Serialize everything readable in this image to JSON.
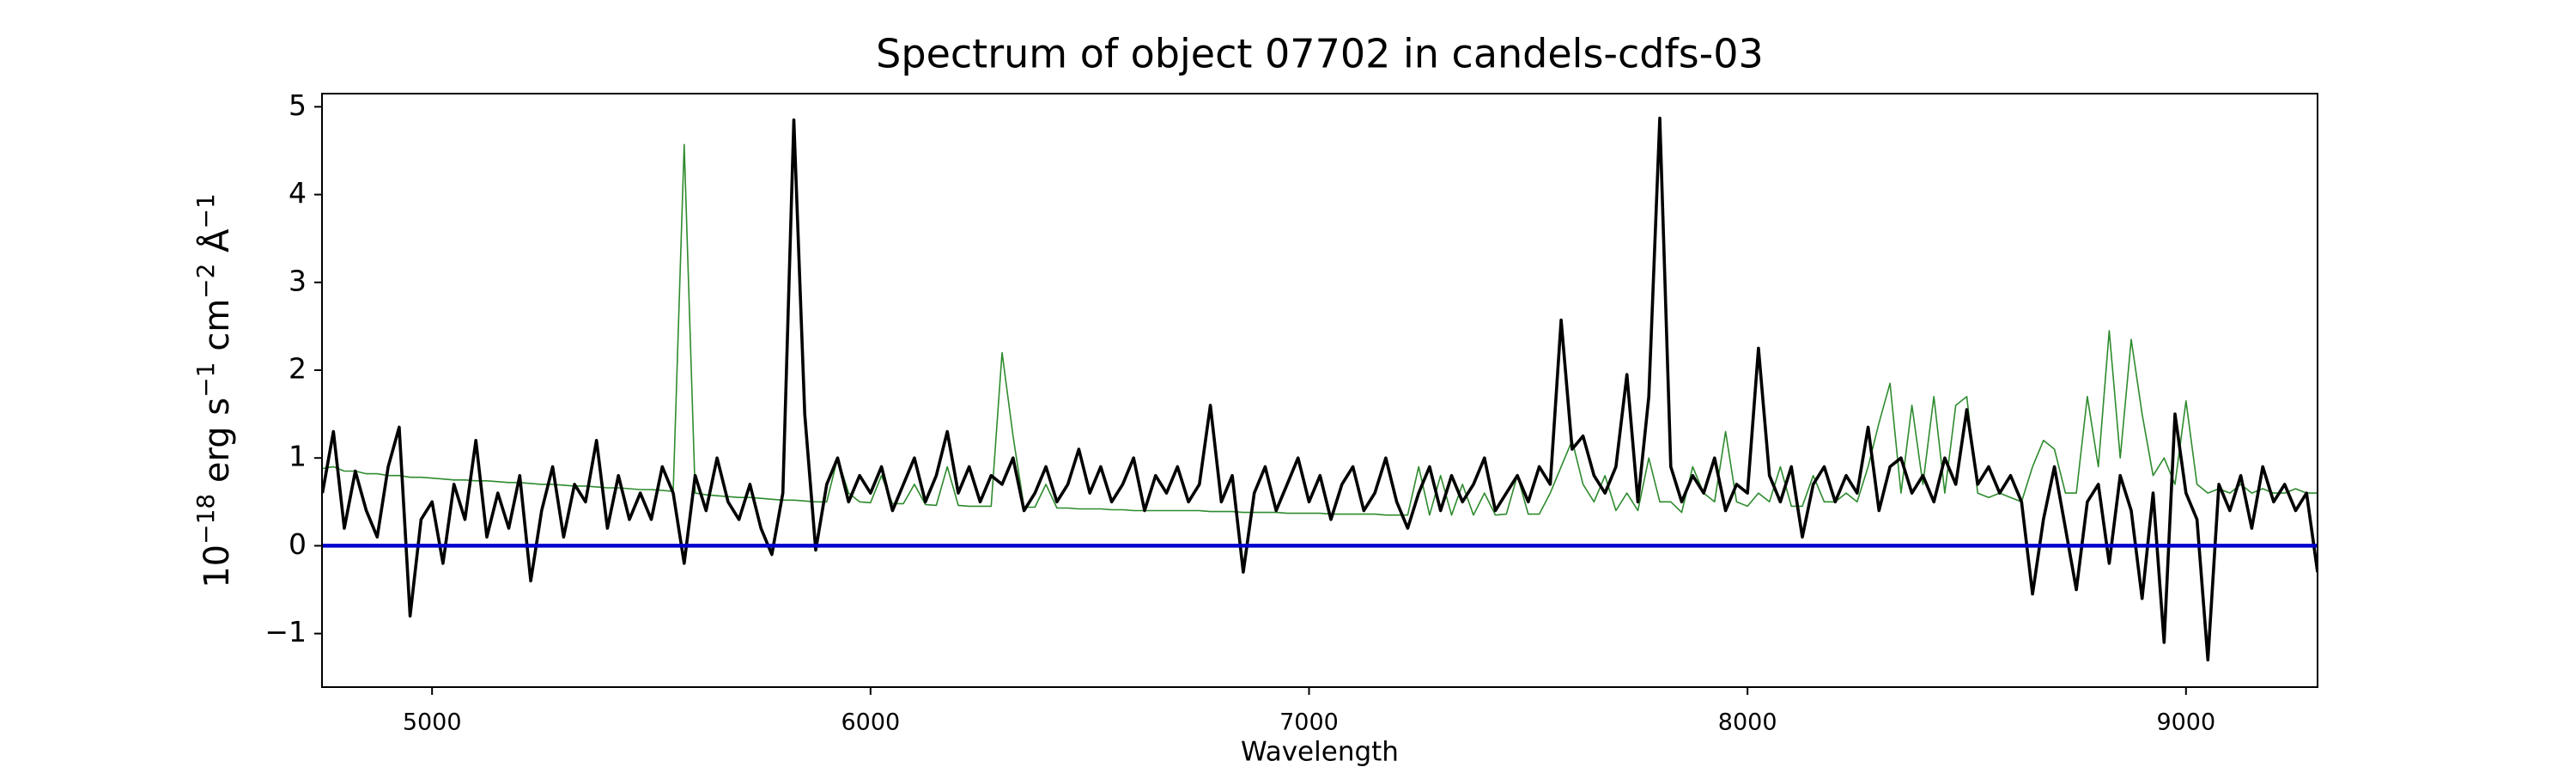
{
  "chart_data": {
    "type": "line",
    "title": "Spectrum of object 07702 in candels-cdfs-03",
    "xlabel": "Wavelength",
    "ylabel": [
      "10",
      "−18",
      " erg s",
      "−1",
      " cm",
      "−2",
      " Å",
      "−1"
    ],
    "xlim": [
      4749,
      9300
    ],
    "ylim": [
      -1.61,
      5.15
    ],
    "xticks": [
      5000,
      6000,
      7000,
      8000,
      9000
    ],
    "yticks": [
      {
        "value": -1,
        "label": "−1"
      },
      0,
      1,
      2,
      3,
      4,
      5
    ],
    "x": [
      4750,
      4775,
      4800,
      4825,
      4850,
      4875,
      4900,
      4925,
      4950,
      4975,
      5000,
      5025,
      5050,
      5075,
      5100,
      5125,
      5150,
      5175,
      5200,
      5225,
      5250,
      5275,
      5300,
      5325,
      5350,
      5375,
      5400,
      5425,
      5450,
      5475,
      5500,
      5525,
      5550,
      5575,
      5600,
      5625,
      5650,
      5675,
      5700,
      5725,
      5750,
      5775,
      5800,
      5825,
      5850,
      5875,
      5900,
      5925,
      5950,
      5975,
      6000,
      6025,
      6050,
      6075,
      6100,
      6125,
      6150,
      6175,
      6200,
      6225,
      6250,
      6275,
      6300,
      6325,
      6350,
      6375,
      6400,
      6425,
      6450,
      6475,
      6500,
      6525,
      6550,
      6575,
      6600,
      6625,
      6650,
      6675,
      6700,
      6725,
      6750,
      6775,
      6800,
      6825,
      6850,
      6875,
      6900,
      6925,
      6950,
      6975,
      7000,
      7025,
      7050,
      7075,
      7100,
      7125,
      7150,
      7175,
      7200,
      7225,
      7250,
      7275,
      7300,
      7325,
      7350,
      7375,
      7400,
      7425,
      7450,
      7475,
      7500,
      7525,
      7550,
      7575,
      7600,
      7625,
      7650,
      7675,
      7700,
      7725,
      7750,
      7775,
      7800,
      7825,
      7850,
      7875,
      7900,
      7925,
      7950,
      7975,
      8000,
      8025,
      8050,
      8075,
      8100,
      8125,
      8150,
      8175,
      8200,
      8225,
      8250,
      8275,
      8300,
      8325,
      8350,
      8375,
      8400,
      8425,
      8450,
      8475,
      8500,
      8525,
      8550,
      8575,
      8600,
      8625,
      8650,
      8675,
      8700,
      8725,
      8750,
      8775,
      8800,
      8825,
      8850,
      8875,
      8900,
      8925,
      8950,
      8975,
      9000,
      9025,
      9050,
      9075,
      9100,
      9125,
      9150,
      9175,
      9200,
      9225,
      9250,
      9275,
      9300
    ],
    "series": [
      {
        "color": "#2e8b2e",
        "values": [
          0.88,
          0.9,
          0.85,
          0.85,
          0.82,
          0.82,
          0.8,
          0.8,
          0.78,
          0.78,
          0.77,
          0.76,
          0.75,
          0.75,
          0.74,
          0.74,
          0.73,
          0.72,
          0.72,
          0.71,
          0.7,
          0.7,
          0.69,
          0.68,
          0.68,
          0.67,
          0.66,
          0.66,
          0.65,
          0.64,
          0.64,
          0.63,
          0.62,
          4.57,
          0.6,
          0.58,
          0.57,
          0.56,
          0.55,
          0.55,
          0.54,
          0.53,
          0.52,
          0.52,
          0.51,
          0.5,
          0.5,
          1.0,
          0.6,
          0.5,
          0.49,
          0.8,
          0.48,
          0.48,
          0.7,
          0.47,
          0.46,
          0.9,
          0.46,
          0.45,
          0.45,
          0.45,
          2.2,
          1.25,
          0.44,
          0.44,
          0.7,
          0.43,
          0.43,
          0.42,
          0.42,
          0.42,
          0.41,
          0.41,
          0.4,
          0.4,
          0.4,
          0.4,
          0.4,
          0.4,
          0.4,
          0.39,
          0.39,
          0.39,
          0.38,
          0.38,
          0.38,
          0.38,
          0.37,
          0.37,
          0.37,
          0.37,
          0.36,
          0.36,
          0.36,
          0.36,
          0.36,
          0.35,
          0.35,
          0.35,
          0.9,
          0.35,
          0.8,
          0.35,
          0.7,
          0.35,
          0.6,
          0.35,
          0.36,
          0.8,
          0.36,
          0.36,
          0.6,
          0.9,
          1.2,
          0.7,
          0.5,
          0.8,
          0.4,
          0.6,
          0.4,
          1.0,
          0.5,
          0.5,
          0.38,
          0.9,
          0.6,
          0.5,
          1.3,
          0.5,
          0.45,
          0.6,
          0.5,
          0.9,
          0.45,
          0.45,
          0.8,
          0.5,
          0.5,
          0.6,
          0.5,
          0.9,
          1.4,
          1.85,
          0.6,
          1.6,
          0.7,
          1.7,
          0.6,
          1.6,
          1.7,
          0.6,
          0.55,
          0.6,
          0.55,
          0.5,
          0.9,
          1.2,
          1.1,
          0.6,
          0.6,
          1.7,
          0.9,
          2.45,
          1.0,
          2.35,
          1.5,
          0.8,
          1.0,
          0.7,
          1.65,
          0.7,
          0.6,
          0.65,
          0.6,
          0.7,
          0.6,
          0.65,
          0.6,
          0.6,
          0.65,
          0.6,
          0.6
        ]
      },
      {
        "color": "#000000",
        "values": [
          0.6,
          1.3,
          0.2,
          0.85,
          0.4,
          0.1,
          0.9,
          1.35,
          -0.8,
          0.3,
          0.5,
          -0.2,
          0.7,
          0.3,
          1.2,
          0.1,
          0.6,
          0.2,
          0.8,
          -0.4,
          0.4,
          0.9,
          0.1,
          0.7,
          0.5,
          1.2,
          0.2,
          0.8,
          0.3,
          0.6,
          0.3,
          0.9,
          0.6,
          -0.2,
          0.8,
          0.4,
          1.0,
          0.5,
          0.3,
          0.7,
          0.2,
          -0.1,
          0.6,
          4.85,
          1.5,
          -0.05,
          0.7,
          1.0,
          0.5,
          0.8,
          0.6,
          0.9,
          0.4,
          0.7,
          1.0,
          0.5,
          0.8,
          1.3,
          0.6,
          0.9,
          0.5,
          0.8,
          0.7,
          1.0,
          0.4,
          0.6,
          0.9,
          0.5,
          0.7,
          1.1,
          0.6,
          0.9,
          0.5,
          0.7,
          1.0,
          0.4,
          0.8,
          0.6,
          0.9,
          0.5,
          0.7,
          1.6,
          0.5,
          0.8,
          -0.3,
          0.6,
          0.9,
          0.4,
          0.7,
          1.0,
          0.5,
          0.8,
          0.3,
          0.7,
          0.9,
          0.4,
          0.6,
          1.0,
          0.5,
          0.2,
          0.6,
          0.9,
          0.4,
          0.8,
          0.5,
          0.7,
          1.0,
          0.4,
          0.6,
          0.8,
          0.5,
          0.9,
          0.7,
          2.57,
          1.1,
          1.25,
          0.8,
          0.6,
          0.9,
          1.95,
          0.5,
          1.7,
          4.87,
          0.9,
          0.5,
          0.8,
          0.6,
          1.0,
          0.4,
          0.7,
          0.6,
          2.25,
          0.8,
          0.5,
          0.9,
          0.1,
          0.7,
          0.9,
          0.5,
          0.8,
          0.6,
          1.35,
          0.4,
          0.9,
          1.0,
          0.6,
          0.8,
          0.5,
          1.0,
          0.7,
          1.55,
          0.7,
          0.9,
          0.6,
          0.8,
          0.5,
          -0.55,
          0.3,
          0.9,
          0.2,
          -0.5,
          0.5,
          0.7,
          -0.2,
          0.8,
          0.4,
          -0.6,
          0.6,
          -1.1,
          1.5,
          0.6,
          0.3,
          -1.3,
          0.7,
          0.4,
          0.8,
          0.2,
          0.9,
          0.5,
          0.7,
          0.4,
          0.6,
          -0.3
        ]
      }
    ],
    "hline": {
      "value": 0,
      "color": "#0000cc"
    }
  }
}
